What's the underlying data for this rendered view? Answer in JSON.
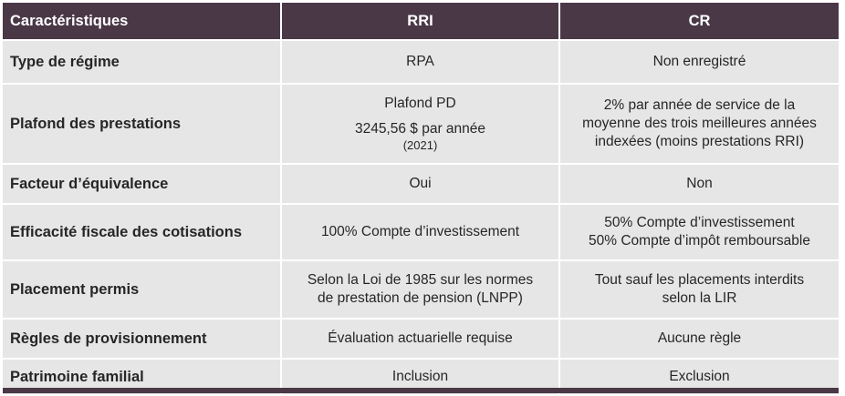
{
  "header": {
    "col0": "Caractéristiques",
    "col1": "RRI",
    "col2": "CR"
  },
  "rows": [
    {
      "label": "Type de régime",
      "rri": "RPA",
      "cr": "Non enregistré"
    },
    {
      "label": "Plafond des prestations",
      "rri": {
        "line1": "Plafond PD",
        "line2": "3245,56 $ par année",
        "line3": "(2021)"
      },
      "cr": "2% par année de service de la moyenne des trois meilleures années indexées (moins prestations RRI)"
    },
    {
      "label": "Facteur d’équivalence",
      "rri": "Oui",
      "cr": "Non"
    },
    {
      "label": "Efficacité fiscale des cotisations",
      "rri": "100% Compte d’investissement",
      "cr": {
        "line1": "50% Compte d’investissement",
        "line2": "50% Compte d’impôt remboursable"
      }
    },
    {
      "label": "Placement permis",
      "rri": "Selon la Loi de 1985 sur les normes de prestation de pension (LNPP)",
      "cr": "Tout sauf les placements interdits selon la LIR"
    },
    {
      "label": "Règles de provisionnement",
      "rri": "Évaluation actuarielle requise",
      "cr": "Aucune règle"
    },
    {
      "label": "Patrimoine familial",
      "rri": "Inclusion",
      "cr": "Exclusion"
    }
  ],
  "colors": {
    "header_bg": "#4a3847",
    "row_bg": "#e6e6e6",
    "text": "#262626"
  }
}
